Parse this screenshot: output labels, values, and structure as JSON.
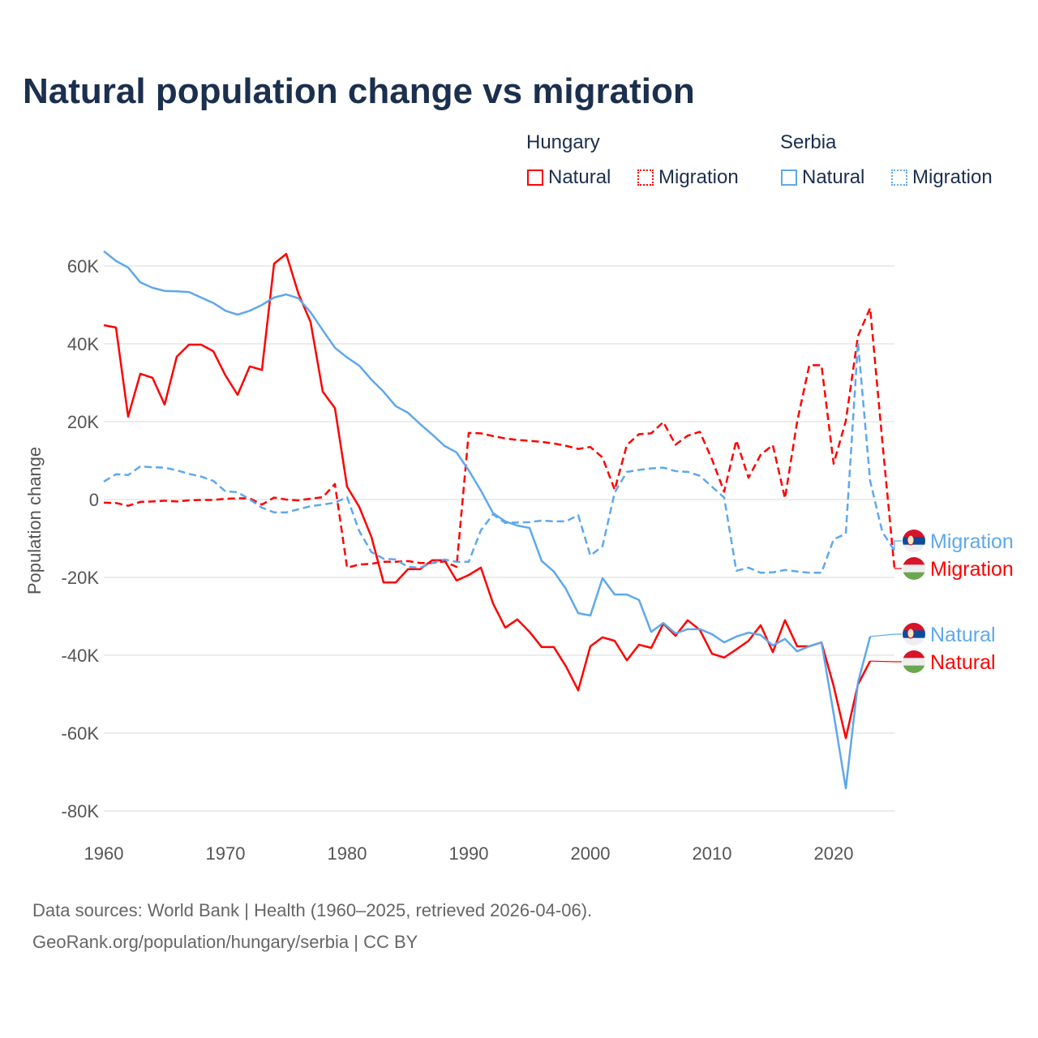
{
  "title": "Natural population change vs migration",
  "legend": {
    "groups": [
      {
        "name": "Hungary",
        "items": [
          "Natural",
          "Migration"
        ]
      },
      {
        "name": "Serbia",
        "items": [
          "Natural",
          "Migration"
        ]
      }
    ]
  },
  "colors": {
    "hungary": "#ff0000",
    "serbia": "#5ea8ec"
  },
  "source_line1": "Data sources: World Bank | Health (1960–2025, retrieved 2026-04-06).",
  "source_line2": "GeoRank.org/population/hungary/serbia | CC BY",
  "chart_data": {
    "type": "line",
    "title": "Natural population change vs migration",
    "xlabel": "",
    "ylabel": "Population change",
    "xlim": [
      1960,
      2025
    ],
    "ylim": [
      -80000,
      60000
    ],
    "xticks": [
      1960,
      1970,
      1980,
      1990,
      2000,
      2010,
      2020
    ],
    "xtick_labels": [
      "1960",
      "1970",
      "1980",
      "1990",
      "2000",
      "2010",
      "2020"
    ],
    "yticks": [
      60000,
      40000,
      20000,
      0,
      -20000,
      -40000,
      -60000,
      -80000
    ],
    "ytick_labels": [
      "60K",
      "40K",
      "20K",
      "0",
      "-20K",
      "-40K",
      "-60K",
      "-80K"
    ],
    "grid": true,
    "series": [
      {
        "name": "Hungary Natural",
        "label": "Natural",
        "country": "hungary",
        "dash": false,
        "start": 1960,
        "values": [
          44.8,
          44.2,
          21.3,
          32.3,
          31.3,
          24.4,
          36.7,
          39.8,
          39.8,
          38.1,
          31.9,
          26.9,
          34.2,
          33.3,
          60.6,
          63.1,
          52.9,
          45.6,
          27.7,
          23.5,
          3.3,
          -1.9,
          -9.6,
          -21.3,
          -21.3,
          -17.9,
          -17.9,
          -15.6,
          -15.6,
          -20.8,
          -19.4,
          -17.5,
          -26.7,
          -32.9,
          -30.8,
          -34,
          -37.9,
          -37.9,
          -42.9,
          -49,
          -37.7,
          -35.4,
          -36.3,
          -41.3,
          -37.3,
          -38.1,
          -31.9,
          -35,
          -31,
          -33.5,
          -39.6,
          -40.6,
          -38.5,
          -36.3,
          -32.3,
          -39.2,
          -31,
          -37.7,
          -37.7,
          -36.7,
          -47.9,
          -61.3,
          -47.5,
          -41.5
        ]
      },
      {
        "name": "Hungary Migration",
        "label": "Migration",
        "country": "hungary",
        "dash": true,
        "start": 1960,
        "values": [
          -0.8,
          -0.9,
          -1.6,
          -0.6,
          -0.5,
          -0.3,
          -0.5,
          -0.2,
          -0.1,
          -0.1,
          0.2,
          0.3,
          0.3,
          -1.3,
          0.5,
          0,
          -0.2,
          0.2,
          0.6,
          4,
          -17.5,
          -16.7,
          -16.5,
          -16,
          -16,
          -15.8,
          -16.3,
          -16.3,
          -15.9,
          -17.3,
          17.1,
          17,
          16.3,
          15.7,
          15.3,
          15.1,
          14.8,
          14.4,
          13.8,
          13,
          13.5,
          10.8,
          2.5,
          14,
          16.8,
          17,
          19.9,
          14.1,
          16.4,
          17.4,
          10.3,
          2,
          15.2,
          5.6,
          11.5,
          14,
          0.3,
          20,
          34.5,
          34.5,
          9.2,
          20.2,
          42,
          49.2,
          15,
          -17.7
        ]
      },
      {
        "name": "Serbia Natural",
        "label": "Natural",
        "country": "serbia",
        "dash": false,
        "start": 1960,
        "values": [
          63.8,
          61.3,
          59.6,
          55.8,
          54.4,
          53.6,
          53.5,
          53.3,
          51.9,
          50.5,
          48.5,
          47.5,
          48.5,
          50,
          51.9,
          52.7,
          51.7,
          48.1,
          43.5,
          39,
          36.5,
          34.4,
          30.8,
          27.7,
          24,
          22.3,
          19.4,
          16.7,
          13.8,
          12.1,
          7.5,
          2.3,
          -3.5,
          -5.6,
          -6.7,
          -7.3,
          -15.8,
          -18.5,
          -23,
          -29.2,
          -29.8,
          -20.2,
          -24.4,
          -24.4,
          -25.8,
          -34,
          -31.7,
          -34.4,
          -33.3,
          -33.3,
          -34.6,
          -36.7,
          -35.2,
          -34.2,
          -34.8,
          -37.5,
          -35.8,
          -39,
          -37.7,
          -36.7,
          -55,
          -74.2,
          -47,
          -35.2
        ]
      },
      {
        "name": "Serbia Migration",
        "label": "Migration",
        "country": "serbia",
        "dash": true,
        "start": 1960,
        "values": [
          4.6,
          6.5,
          6.3,
          8.5,
          8.3,
          8.2,
          7.5,
          6.6,
          5.9,
          4.8,
          2.1,
          1.9,
          0,
          -2.1,
          -3.3,
          -3.3,
          -2.5,
          -1.7,
          -1.3,
          -0.8,
          0.6,
          -8.1,
          -13.5,
          -15.2,
          -15.4,
          -17.3,
          -17.5,
          -16.3,
          -15.4,
          -16,
          -16,
          -7.9,
          -3.8,
          -6,
          -5.9,
          -5.8,
          -5.4,
          -5.6,
          -5.6,
          -4,
          -14.4,
          -12,
          1.8,
          7.1,
          7.6,
          8,
          8.2,
          7.3,
          7.1,
          6.1,
          3.3,
          0.5,
          -18.3,
          -17.5,
          -18.8,
          -18.7,
          -18.1,
          -18.5,
          -18.8,
          -18.8,
          -10.2,
          -8.8,
          40.4,
          4.8,
          -8.3,
          -13.1
        ]
      }
    ],
    "value_unit": "thousands",
    "end_labels": [
      {
        "text": "Migration",
        "country": "serbia"
      },
      {
        "text": "Migration",
        "country": "hungary"
      },
      {
        "text": "Natural",
        "country": "serbia"
      },
      {
        "text": "Natural",
        "country": "hungary"
      }
    ]
  }
}
